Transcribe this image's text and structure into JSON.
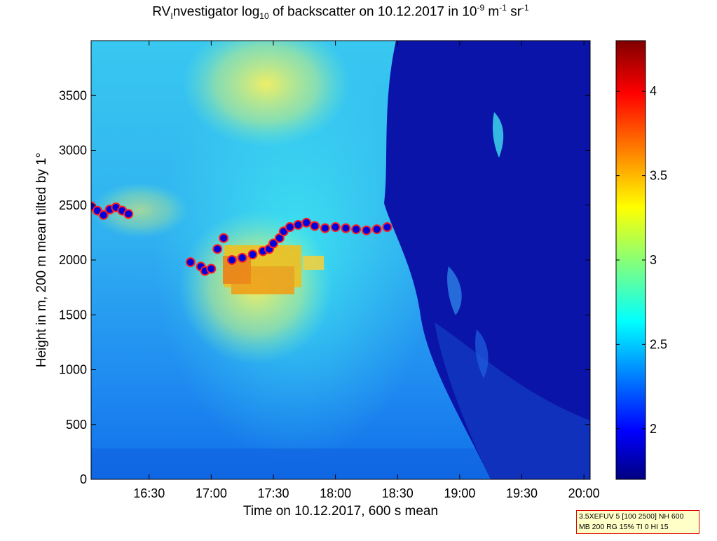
{
  "title": {
    "t1": "RV",
    "t2": "I",
    "t3": "nvestigator log",
    "t4": "10",
    "t5": " of backscatter on 10.12.2017 in 10",
    "t6": "-9",
    "t7": " m",
    "t8": "-1",
    "t9": " sr",
    "t10": "-1"
  },
  "info_box": {
    "line1": "3.5XEFUV 5 [100 2500] NH 600",
    "line2": "MB 200 RG 15% TI 0 HI 15"
  },
  "chart_data": {
    "type": "heatmap",
    "xlabel": "Time on 10.12.2017, 600 s mean",
    "ylabel": "Height in m, 200 m mean tilted by 1°",
    "x_ticks": [
      "16:30",
      "17:00",
      "17:30",
      "18:00",
      "18:30",
      "19:00",
      "19:30",
      "20:00"
    ],
    "x_tick_minutes": [
      990,
      1020,
      1050,
      1080,
      1110,
      1140,
      1170,
      1200
    ],
    "xlim_minutes": [
      962,
      1203
    ],
    "y_ticks": [
      0,
      500,
      1000,
      1500,
      2000,
      2500,
      3000,
      3500
    ],
    "ylim": [
      0,
      4000
    ],
    "colorbar": {
      "range": [
        1.7,
        4.3
      ],
      "ticks": [
        2,
        2.5,
        3,
        3.5,
        4
      ],
      "tick_labels": [
        "2",
        "2.5",
        "3",
        "3.5",
        "4"
      ],
      "colormap": "jet"
    },
    "boundary_layer_series": {
      "color": "#0000dd",
      "x_minutes": [
        962,
        965,
        968,
        971,
        974,
        977,
        980,
        1000,
        1010,
        1015,
        1017,
        1020,
        1023,
        1026,
        1030,
        1035,
        1040,
        1045,
        1048,
        1050,
        1053,
        1055,
        1058,
        1062,
        1066,
        1070,
        1075,
        1080,
        1085,
        1090,
        1095,
        1100,
        1105
      ],
      "heights_m": [
        2490,
        2450,
        2410,
        2460,
        2480,
        2450,
        2420,
        null,
        1980,
        1940,
        1900,
        1920,
        2100,
        2200,
        2000,
        2020,
        2050,
        2080,
        2100,
        2150,
        2200,
        2260,
        2300,
        2320,
        2340,
        2310,
        2290,
        2300,
        2290,
        2280,
        2270,
        2280,
        2300
      ]
    }
  }
}
